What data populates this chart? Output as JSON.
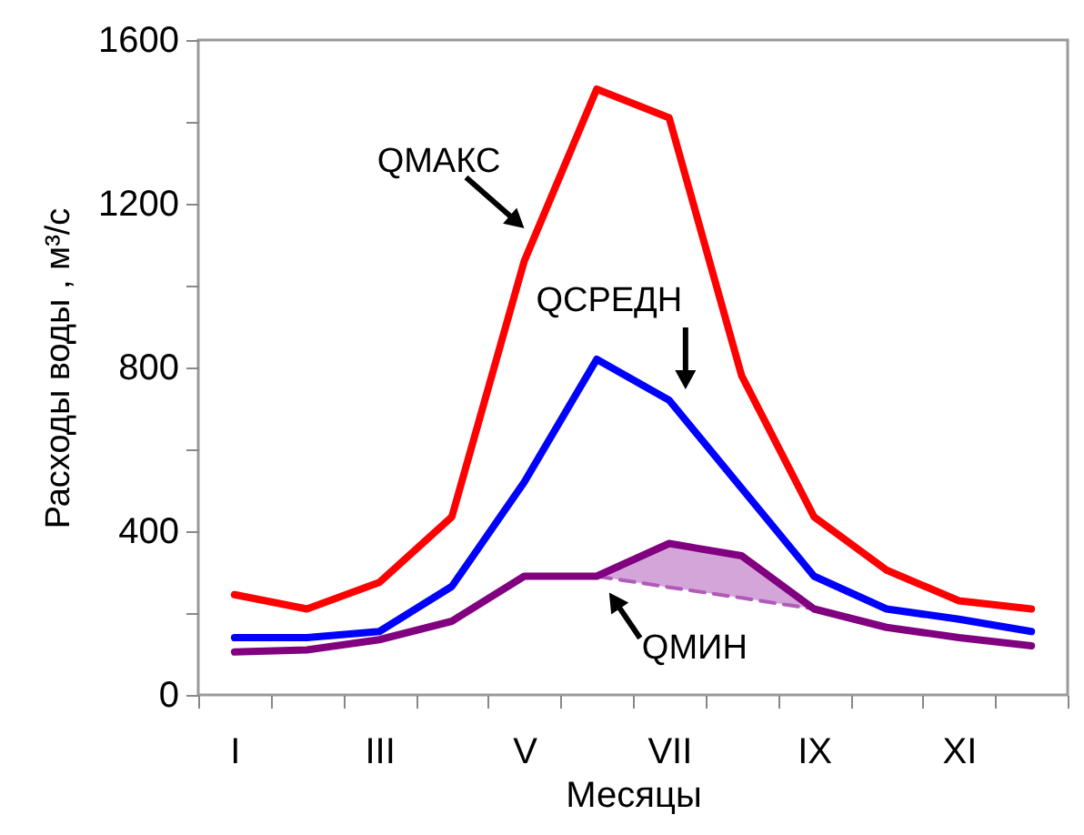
{
  "chart_data": {
    "type": "line",
    "xlabel": "Месяцы",
    "ylabel": "Расходы воды , м³/с",
    "categories": [
      "I",
      null,
      "III",
      null,
      "V",
      null,
      "VII",
      null,
      "IX",
      null,
      "XI",
      null
    ],
    "ylim": [
      0,
      1600
    ],
    "yticks": [
      0,
      {
        "value": 200,
        "label": null
      },
      400,
      {
        "value": 600,
        "label": null
      },
      800,
      {
        "value": 1000,
        "label": null
      },
      1200,
      {
        "value": 1400,
        "label": null
      },
      1600
    ],
    "grid": false,
    "marker": "none",
    "series": [
      {
        "type": "line",
        "line_style": "dashed",
        "color": "#b05bb8",
        "values": [
          null,
          null,
          null,
          null,
          null,
          290,
          263,
          237,
          210,
          null,
          null,
          null
        ],
        "lower": [
          null,
          null,
          null,
          null,
          null,
          290,
          263,
          237,
          210,
          null,
          null,
          null
        ],
        "upper": [
          null,
          null,
          null,
          null,
          null,
          290,
          370,
          340,
          210,
          null,
          null,
          null
        ]
      },
      {
        "name": "QМАКС",
        "color": "#ff0000",
        "values": [
          245,
          210,
          275,
          435,
          1060,
          1480,
          1410,
          780,
          435,
          305,
          230,
          210
        ]
      },
      {
        "name": "QСРЕДН",
        "color": "#0000ff",
        "values": [
          140,
          140,
          155,
          265,
          520,
          820,
          720,
          505,
          290,
          210,
          185,
          155
        ]
      },
      {
        "name": "QМИН",
        "color": "#800080",
        "values": [
          105,
          110,
          135,
          180,
          290,
          290,
          370,
          340,
          210,
          165,
          140,
          120
        ]
      }
    ]
  }
}
